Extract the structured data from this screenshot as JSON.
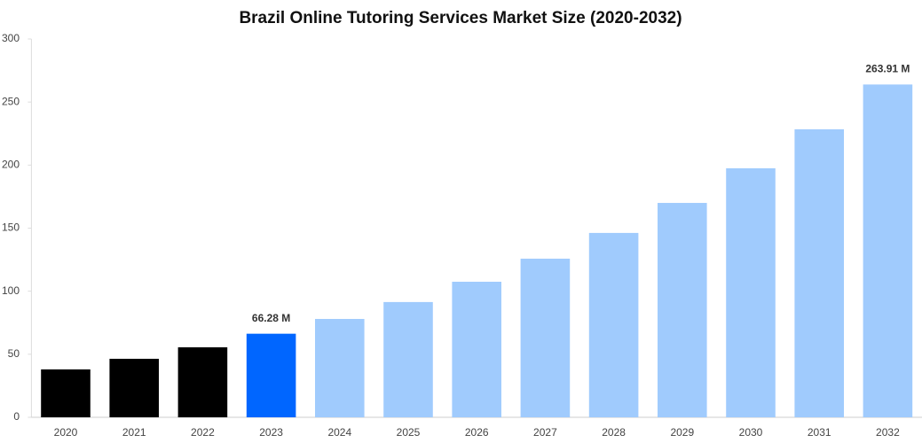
{
  "chart_data": {
    "type": "bar",
    "title": "Brazil Online Tutoring Services Market Size (2020-2032)",
    "categories": [
      "2020",
      "2021",
      "2022",
      "2023",
      "2024",
      "2025",
      "2026",
      "2027",
      "2028",
      "2029",
      "2030",
      "2031",
      "2032"
    ],
    "values": [
      38,
      46.4,
      55.5,
      66.28,
      78,
      91.4,
      107.5,
      125.8,
      146.2,
      170,
      197.5,
      228.4,
      263.91
    ],
    "value_labels": [
      null,
      null,
      null,
      "66.28 M",
      null,
      null,
      null,
      null,
      null,
      null,
      null,
      null,
      "263.91 M"
    ],
    "colors": [
      "#000000",
      "#000000",
      "#000000",
      "#0066ff",
      "#a0cbfd",
      "#a0cbfd",
      "#a0cbfd",
      "#a0cbfd",
      "#a0cbfd",
      "#a0cbfd",
      "#a0cbfd",
      "#a0cbfd",
      "#a0cbfd"
    ],
    "ylim": [
      0,
      300
    ],
    "yticks": [
      0,
      50,
      100,
      150,
      200,
      250,
      300
    ],
    "grid": false
  }
}
